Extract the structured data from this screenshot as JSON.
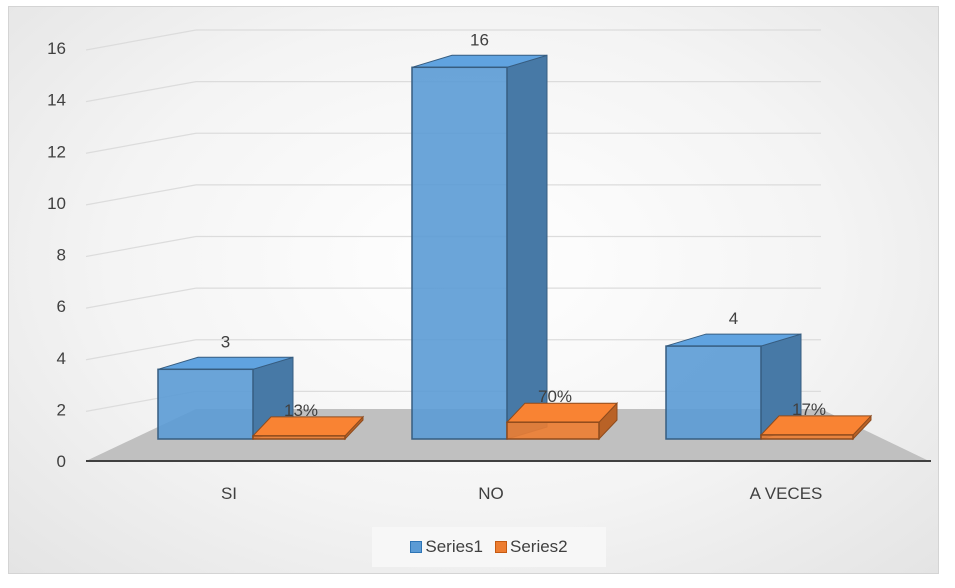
{
  "chart_data": {
    "type": "bar",
    "categories": [
      "SI",
      "NO",
      "A VECES"
    ],
    "series": [
      {
        "name": "Series1",
        "values": [
          3,
          16,
          4
        ],
        "labels": [
          "3",
          "16",
          "4"
        ],
        "color": "#5b9bd5"
      },
      {
        "name": "Series2",
        "values": [
          0.13,
          0.7,
          0.17
        ],
        "labels": [
          "13%",
          "70%",
          "17%"
        ],
        "color": "#ed7d31"
      }
    ],
    "ylim": [
      0,
      16
    ],
    "yticks": [
      "0",
      "2",
      "4",
      "6",
      "8",
      "10",
      "12",
      "14",
      "16"
    ],
    "title": "",
    "xlabel": "",
    "ylabel": "",
    "style": "3d-column",
    "grid": true,
    "legend_position": "bottom"
  }
}
